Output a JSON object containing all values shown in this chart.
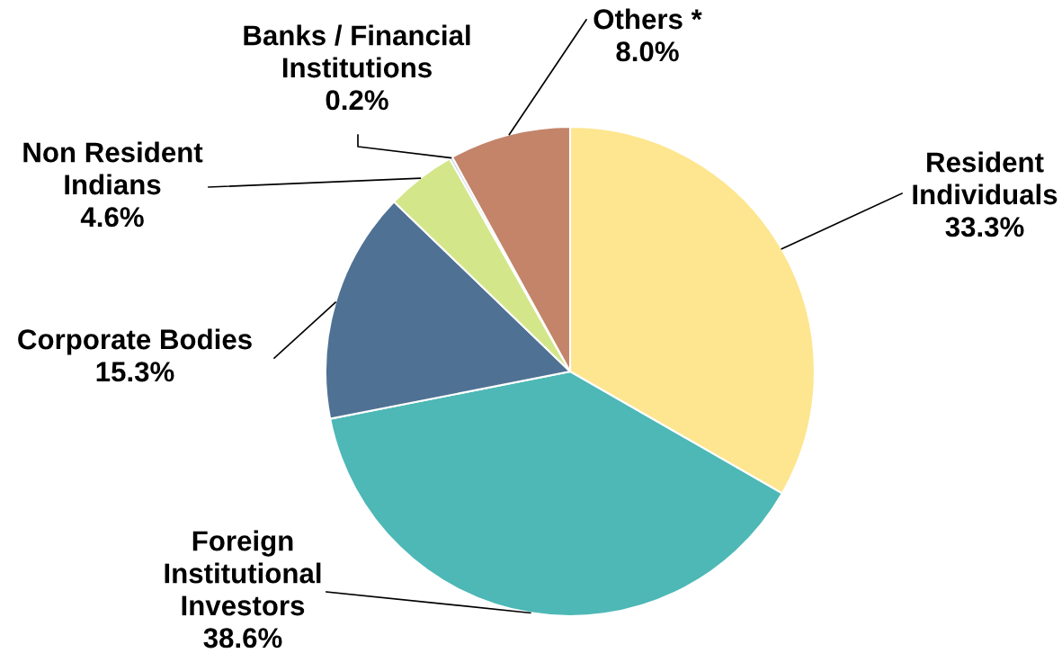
{
  "chart_data": {
    "type": "pie",
    "categories": [
      "Resident Individuals",
      "Foreign Institutional Investors",
      "Corporate Bodies",
      "Non Resident Indians",
      "Banks / Financial Institutions",
      "Others *"
    ],
    "values": [
      33.3,
      38.6,
      15.3,
      4.6,
      0.2,
      8.0
    ],
    "colors": [
      "#fde68f",
      "#4db8b6",
      "#4f7194",
      "#d4e68a",
      "#c8d0e8",
      "#c4846a"
    ],
    "value_labels": [
      "33.3%",
      "38.6%",
      "15.3%",
      "4.6%",
      "0.2%",
      "8.0%"
    ],
    "legend": false
  }
}
